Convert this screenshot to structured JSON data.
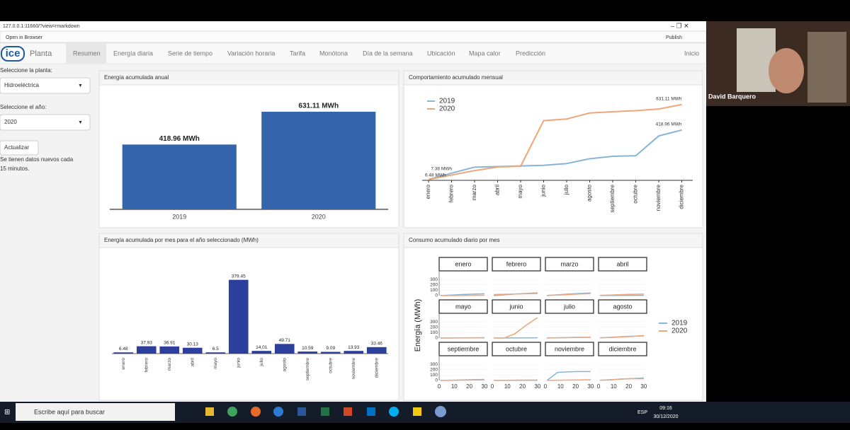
{
  "window": {
    "url": "127.0.0.1:11660/?view=rmarkdown",
    "open_in_browser": "Open in Browser",
    "publish": "Publish"
  },
  "nav": {
    "logo": "ice",
    "app": "Planta",
    "tabs": [
      "Resumen",
      "Energía diaria",
      "Serie de tiempo",
      "Variación horaria",
      "Tarifa",
      "Monótona",
      "Día de la semana",
      "Ubicación",
      "Mapa calor",
      "Predicción"
    ],
    "home": "Inicio"
  },
  "sidebar": {
    "plant_label": "Seleccione la planta:",
    "plant": "Hidroeléctrica",
    "year_label": "Seleccione el año:",
    "year": "2020",
    "button": "Actualizar",
    "note_lines": [
      "Se tienen datos nuevos cada",
      "15 minutos."
    ]
  },
  "annual": {
    "type": "bar",
    "title": "Energía acumulada anual",
    "categories": [
      "2019",
      "2020"
    ],
    "values": [
      418.96,
      631.11
    ],
    "value_labels": [
      "418.96 MWh",
      "631.11 MWh"
    ],
    "color": "#3465ad",
    "ylim": [
      0,
      640
    ]
  },
  "cumulative": {
    "type": "line",
    "title": "Comportamiento acumulado mensual",
    "categories": [
      "enero",
      "febrero",
      "marzo",
      "abril",
      "mayo",
      "junio",
      "julio",
      "agosto",
      "septiembre",
      "octubre",
      "noviembre",
      "diciembre"
    ],
    "ylim": [
      0,
      660
    ],
    "series": [
      {
        "name": "2019",
        "color": "#86b5d6",
        "values": [
          7.38,
          60,
          110,
          115,
          120,
          125,
          140,
          180,
          200,
          205,
          370,
          418.96
        ],
        "value_labels": [
          "7.38 MWh",
          null,
          null,
          null,
          null,
          null,
          null,
          null,
          null,
          null,
          null,
          "418.96 MWh"
        ]
      },
      {
        "name": "2020",
        "color": "#f0a57a",
        "values": [
          6.48,
          44.41,
          81.32,
          111.45,
          117.95,
          497.4,
          511.41,
          561.12,
          571.71,
          580.8,
          594.73,
          631.11
        ],
        "value_labels": [
          "6.48 MWh",
          null,
          null,
          null,
          null,
          null,
          null,
          null,
          null,
          null,
          null,
          "631.11 MWh"
        ]
      }
    ]
  },
  "monthly": {
    "type": "bar",
    "title": "Energía acumulada por mes para el año seleccionado (MWh)",
    "categories": [
      "enero",
      "febrero",
      "marzo",
      "abril",
      "mayo",
      "junio",
      "julio",
      "agosto",
      "septiembre",
      "octubre",
      "noviembre",
      "diciembre"
    ],
    "values": [
      6.48,
      37.93,
      36.91,
      30.13,
      6.5,
      379.45,
      14.01,
      49.71,
      10.59,
      9.09,
      13.93,
      33.46
    ],
    "color": "#2c3f9c",
    "ylim": [
      0,
      400
    ]
  },
  "daily": {
    "type": "facet_line",
    "title": "Consumo acumulado diario por mes",
    "ylabel": "Energía (MWh)",
    "x": [
      1,
      8,
      15,
      22,
      30
    ],
    "xlim": [
      0,
      31
    ],
    "ylim": [
      0,
      420
    ],
    "xticks": [
      0,
      10,
      20,
      30
    ],
    "yticks": [
      0,
      100,
      200,
      300
    ],
    "series": [
      {
        "name": "2019",
        "color": "#86b5d6"
      },
      {
        "name": "2020",
        "color": "#f0a57a"
      }
    ],
    "facets": [
      {
        "title": "enero",
        "values": [
          [
            2,
            10,
            20,
            28,
            35
          ],
          [
            1,
            2,
            4,
            5,
            6.48
          ]
        ]
      },
      {
        "title": "febrero",
        "values": [
          [
            2,
            15,
            30,
            40,
            52
          ],
          [
            20,
            25,
            30,
            35,
            40
          ]
        ]
      },
      {
        "title": "marzo",
        "values": [
          [
            2,
            15,
            30,
            40,
            50
          ],
          [
            5,
            10,
            20,
            30,
            37
          ]
        ]
      },
      {
        "title": "abril",
        "values": [
          [
            1,
            3,
            4,
            5,
            5
          ],
          [
            5,
            12,
            18,
            25,
            30
          ]
        ]
      },
      {
        "title": "mayo",
        "values": [
          [
            1,
            2,
            3,
            4,
            5
          ],
          [
            1,
            2,
            4,
            5,
            6.5
          ]
        ]
      },
      {
        "title": "junio",
        "values": [
          [
            1,
            2,
            3,
            4,
            5
          ],
          [
            0,
            2,
            80,
            230,
            379
          ]
        ]
      },
      {
        "title": "julio",
        "values": [
          [
            2,
            5,
            10,
            15,
            15
          ],
          [
            2,
            5,
            8,
            12,
            14
          ]
        ]
      },
      {
        "title": "agosto",
        "values": [
          [
            5,
            15,
            25,
            35,
            40
          ],
          [
            5,
            10,
            20,
            30,
            50
          ]
        ]
      },
      {
        "title": "septiembre",
        "values": [
          [
            2,
            5,
            10,
            15,
            20
          ],
          [
            2,
            4,
            6,
            8,
            11
          ]
        ]
      },
      {
        "title": "octubre",
        "values": [
          [
            1,
            2,
            3,
            4,
            5
          ],
          [
            2,
            4,
            6,
            8,
            9
          ]
        ]
      },
      {
        "title": "noviembre",
        "values": [
          [
            0,
            150,
            160,
            165,
            165
          ],
          [
            2,
            5,
            8,
            10,
            14
          ]
        ]
      },
      {
        "title": "diciembre",
        "values": [
          [
            5,
            15,
            25,
            35,
            48
          ],
          [
            5,
            10,
            30,
            33,
            33
          ]
        ]
      }
    ]
  },
  "video": {
    "name": "David Barquero"
  },
  "taskbar": {
    "search": "Escribe aquí para buscar",
    "lang": "ESP",
    "time": "09:16",
    "date": "30/12/2020"
  }
}
